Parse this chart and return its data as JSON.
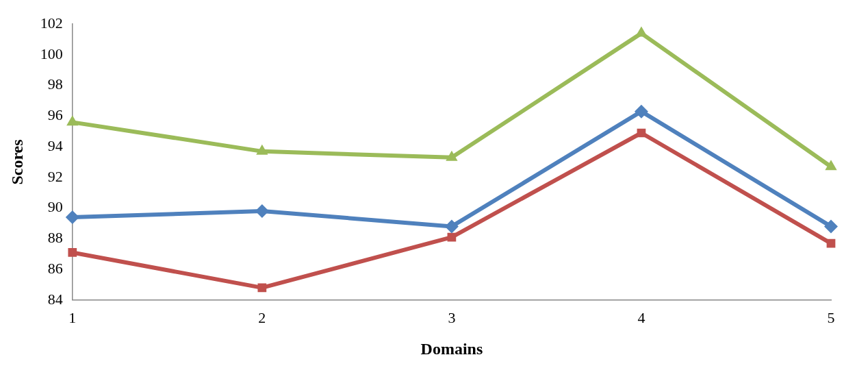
{
  "chart_data": {
    "type": "line",
    "xlabel": "Domains",
    "ylabel": "Scores",
    "categories": [
      "1",
      "2",
      "3",
      "4",
      "5"
    ],
    "series": [
      {
        "color": "#4f81bd",
        "marker": "diamond",
        "values": [
          89.4,
          89.8,
          88.8,
          96.3,
          88.8
        ]
      },
      {
        "color": "#c0504d",
        "marker": "square",
        "values": [
          87.1,
          84.8,
          88.1,
          94.9,
          87.7
        ]
      },
      {
        "color": "#9bbb59",
        "marker": "triangle",
        "values": [
          95.6,
          93.7,
          93.3,
          101.4,
          92.7
        ]
      }
    ],
    "ylim": [
      84,
      102
    ],
    "yticks": [
      84,
      86,
      88,
      90,
      92,
      94,
      96,
      98,
      100,
      102
    ],
    "grid": false,
    "legend": false,
    "line_style": "solid"
  }
}
